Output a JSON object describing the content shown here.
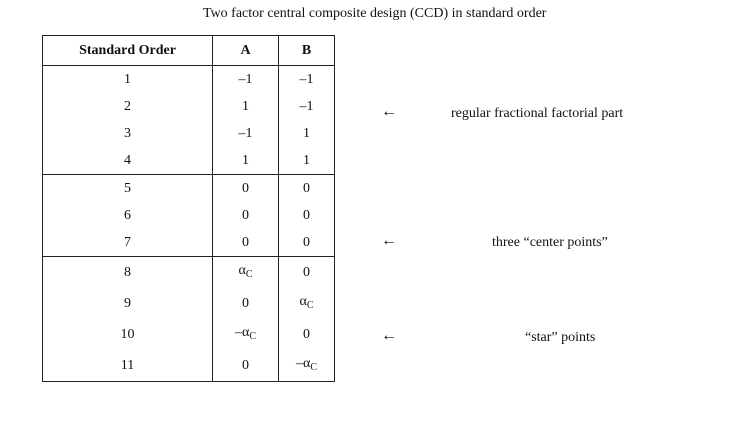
{
  "caption": "Two factor central composite design (CCD) in standard order",
  "table": {
    "headers": [
      "Standard Order",
      "A",
      "B"
    ],
    "rows": [
      [
        "1",
        "–1",
        "–1"
      ],
      [
        "2",
        "1",
        "–1"
      ],
      [
        "3",
        "–1",
        "1"
      ],
      [
        "4",
        "1",
        "1"
      ],
      [
        "5",
        "0",
        "0"
      ],
      [
        "6",
        "0",
        "0"
      ],
      [
        "7",
        "0",
        "0"
      ],
      [
        "8",
        "α_C",
        "0"
      ],
      [
        "9",
        "0",
        "α_C"
      ],
      [
        "10",
        "–α_C",
        "0"
      ],
      [
        "11",
        "0",
        "–α_C"
      ]
    ]
  },
  "annotations": [
    {
      "arrow": "←",
      "text": "regular fractional factorial part"
    },
    {
      "arrow": "←",
      "text": "three “center points”"
    },
    {
      "arrow": "←",
      "text": "“star” points"
    }
  ]
}
